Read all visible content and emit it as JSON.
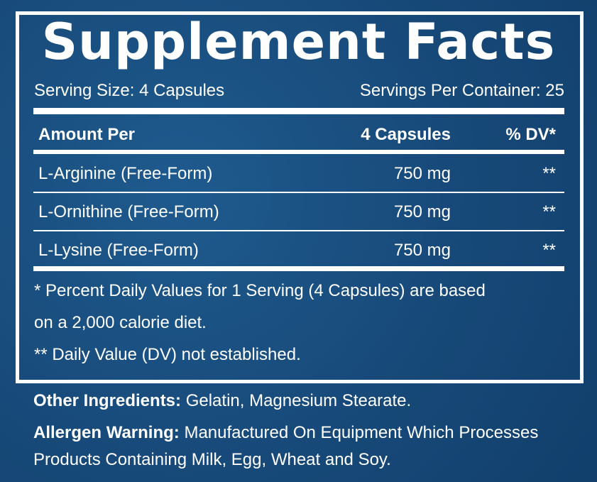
{
  "title": "Supplement Facts",
  "serving_size": "Serving Size: 4 Capsules",
  "servings_per_container": "Servings Per Container: 25",
  "table": {
    "header": [
      "Amount Per",
      "4 Capsules",
      "% DV*"
    ],
    "rows": [
      [
        "L-Arginine (Free-Form)",
        "750 mg",
        "**"
      ],
      [
        "L-Ornithine (Free-Form)",
        "750 mg",
        "**"
      ],
      [
        "L-Lysine (Free-Form)",
        "750 mg",
        "**"
      ]
    ]
  },
  "footnotes": [
    "* Percent Daily Values for 1 Serving (4 Capsules) are based",
    "on a 2,000 calorie diet.",
    "** Daily Value (DV) not established."
  ],
  "other_ingredients": {
    "label": "Other Ingredients:",
    "text": "Gelatin, Magnesium Stearate."
  },
  "allergen_warning": {
    "label": "Allergen Warning:",
    "lines": [
      "Manufactured On Equipment Which Processes",
      "Products Containing Milk, Egg, Wheat and Soy."
    ]
  }
}
